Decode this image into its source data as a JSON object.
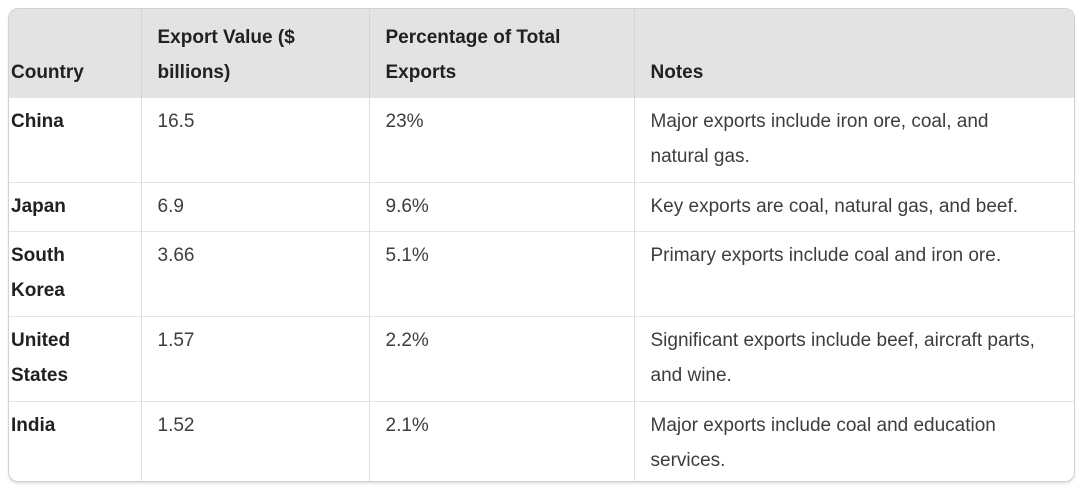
{
  "table": {
    "header": [
      {
        "line1": "Country",
        "line2": ""
      },
      {
        "line1": "Export Value ($",
        "line2": "billions)"
      },
      {
        "line1": "Percentage of Total",
        "line2": "Exports"
      },
      {
        "line1": "Notes",
        "line2": ""
      }
    ],
    "rows": [
      {
        "country": {
          "line1": "China",
          "line2": ""
        },
        "export_value": "16.5",
        "percentage": "23%",
        "notes": {
          "line1": "Major exports include iron ore, coal, and",
          "line2": "natural gas."
        }
      },
      {
        "country": {
          "line1": "Japan",
          "line2": ""
        },
        "export_value": "6.9",
        "percentage": "9.6%",
        "notes": {
          "line1": "Key exports are coal, natural gas, and beef.",
          "line2": ""
        }
      },
      {
        "country": {
          "line1": "South",
          "line2": "Korea"
        },
        "export_value": "3.66",
        "percentage": "5.1%",
        "notes": {
          "line1": "Primary exports include coal and iron ore.",
          "line2": ""
        }
      },
      {
        "country": {
          "line1": "United",
          "line2": "States"
        },
        "export_value": "1.57",
        "percentage": "2.2%",
        "notes": {
          "line1": "Significant exports include beef, aircraft parts,",
          "line2": "and wine."
        }
      },
      {
        "country": {
          "line1": "India",
          "line2": ""
        },
        "export_value": "1.52",
        "percentage": "2.1%",
        "notes": {
          "line1": "Major exports include coal and education",
          "line2": "services."
        }
      }
    ]
  },
  "chart_data": {
    "type": "table",
    "columns": [
      "Country",
      "Export Value ($ billions)",
      "Percentage of Total Exports",
      "Notes"
    ],
    "rows": [
      [
        "China",
        "16.5",
        "23%",
        "Major exports include iron ore, coal, and natural gas."
      ],
      [
        "Japan",
        "6.9",
        "9.6%",
        "Key exports are coal, natural gas, and beef."
      ],
      [
        "South Korea",
        "3.66",
        "5.1%",
        "Primary exports include coal and iron ore."
      ],
      [
        "United States",
        "1.57",
        "2.2%",
        "Significant exports include beef, aircraft parts, and wine."
      ],
      [
        "India",
        "1.52",
        "2.1%",
        "Major exports include coal and education services."
      ]
    ]
  },
  "colors": {
    "header_bg": "#e3e3e3",
    "card_border": "#d2d2d2",
    "column_divider": "#dedede",
    "row_divider": "#e5e5e5",
    "text_primary": "#212121",
    "text_secondary": "#3d3d3d",
    "page_bg": "#ffffff"
  }
}
